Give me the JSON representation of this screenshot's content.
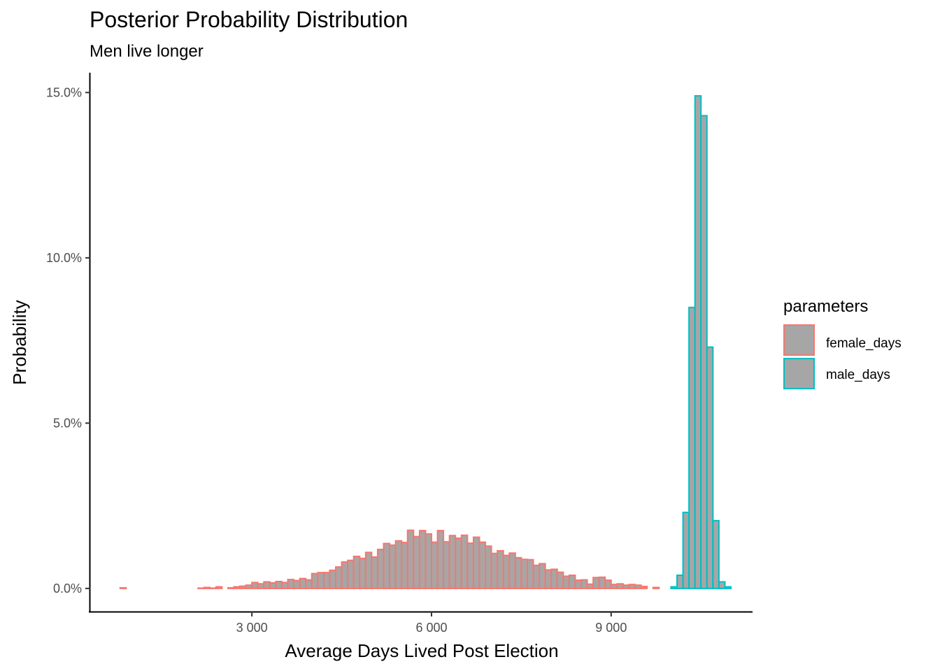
{
  "chart_data": {
    "type": "bar",
    "title": "Posterior Probability Distribution",
    "subtitle": "Men live longer",
    "xlabel": "Average Days Lived Post Election",
    "ylabel": "Probability",
    "xlim": [
      300,
      11350
    ],
    "ylim": [
      -0.7,
      15.6
    ],
    "x_ticks": [
      3000,
      6000,
      9000
    ],
    "x_tick_labels": [
      "3 000",
      "6 000",
      "9 000"
    ],
    "y_ticks": [
      0,
      5,
      10,
      15
    ],
    "y_tick_labels": [
      "0.0%",
      "5.0%",
      "10.0%",
      "15.0%"
    ],
    "grid": false,
    "legend": {
      "title": "parameters",
      "position": "right",
      "fill": "#a6a6a6"
    },
    "series": [
      {
        "name": "female_days",
        "color": "#f8766d",
        "bin_width": 100,
        "x": [
          850,
          950,
          1050,
          1150,
          1250,
          1350,
          1450,
          1550,
          1650,
          1750,
          1850,
          1950,
          2050,
          2150,
          2250,
          2350,
          2450,
          2550,
          2650,
          2750,
          2850,
          2950,
          3050,
          3150,
          3250,
          3350,
          3450,
          3550,
          3650,
          3750,
          3850,
          3950,
          4050,
          4150,
          4250,
          4350,
          4450,
          4550,
          4650,
          4750,
          4850,
          4950,
          5050,
          5150,
          5250,
          5350,
          5450,
          5550,
          5650,
          5750,
          5850,
          5950,
          6050,
          6150,
          6250,
          6350,
          6450,
          6550,
          6650,
          6750,
          6850,
          6950,
          7050,
          7150,
          7250,
          7350,
          7450,
          7550,
          7650,
          7750,
          7850,
          7950,
          8050,
          8150,
          8250,
          8350,
          8450,
          8550,
          8650,
          8750,
          8850,
          8950,
          9050,
          9150,
          9250,
          9350,
          9450,
          9550,
          9650,
          9750,
          9850,
          9950,
          10050,
          10150,
          10250,
          10350,
          10450,
          10550,
          10650,
          10750,
          10850,
          10950
        ],
        "values": [
          0.02,
          0.0,
          0.0,
          0.0,
          0.0,
          0.0,
          0.0,
          0.0,
          0.0,
          0.0,
          0.0,
          0.0,
          0.0,
          0.01,
          0.03,
          0.01,
          0.05,
          0.0,
          0.02,
          0.05,
          0.07,
          0.1,
          0.18,
          0.14,
          0.2,
          0.17,
          0.21,
          0.18,
          0.27,
          0.24,
          0.3,
          0.26,
          0.45,
          0.48,
          0.48,
          0.55,
          0.65,
          0.8,
          0.85,
          0.97,
          0.91,
          1.09,
          0.95,
          1.18,
          1.36,
          1.31,
          1.44,
          1.39,
          1.76,
          1.57,
          1.75,
          1.65,
          1.4,
          1.75,
          1.41,
          1.6,
          1.52,
          1.61,
          1.37,
          1.55,
          1.4,
          1.28,
          1.06,
          1.14,
          1.0,
          1.07,
          0.93,
          0.88,
          0.87,
          0.7,
          0.75,
          0.56,
          0.58,
          0.49,
          0.37,
          0.4,
          0.25,
          0.26,
          0.13,
          0.33,
          0.34,
          0.25,
          0.12,
          0.14,
          0.1,
          0.12,
          0.1,
          0.06,
          0.0,
          0.03,
          0.0,
          0.0,
          0.0,
          0.0,
          0.0,
          0.0,
          0.0,
          0.0,
          0.0,
          0.0,
          0.0,
          0.0
        ]
      },
      {
        "name": "male_days",
        "color": "#00bfc4",
        "bin_width": 100,
        "x": [
          850,
          950,
          1050,
          1150,
          1250,
          1350,
          1450,
          1550,
          1650,
          1750,
          1850,
          1950,
          2050,
          2150,
          2250,
          2350,
          2450,
          2550,
          2650,
          2750,
          2850,
          2950,
          3050,
          3150,
          3250,
          3350,
          3450,
          3550,
          3650,
          3750,
          3850,
          3950,
          4050,
          4150,
          4250,
          4350,
          4450,
          4550,
          4650,
          4750,
          4850,
          4950,
          5050,
          5150,
          5250,
          5350,
          5450,
          5550,
          5650,
          5750,
          5850,
          5950,
          6050,
          6150,
          6250,
          6350,
          6450,
          6550,
          6650,
          6750,
          6850,
          6950,
          7050,
          7150,
          7250,
          7350,
          7450,
          7550,
          7650,
          7750,
          7850,
          7950,
          8050,
          8150,
          8250,
          8350,
          8450,
          8550,
          8650,
          8750,
          8850,
          8950,
          9050,
          9150,
          9250,
          9350,
          9450,
          9550,
          9650,
          9750,
          9850,
          9950,
          10050,
          10150,
          10250,
          10350,
          10450,
          10550,
          10650,
          10750,
          10850,
          10950
        ],
        "values": [
          0.0,
          0.0,
          0.0,
          0.0,
          0.0,
          0.0,
          0.0,
          0.0,
          0.0,
          0.0,
          0.0,
          0.0,
          0.0,
          0.0,
          0.0,
          0.0,
          0.0,
          0.0,
          0.0,
          0.0,
          0.0,
          0.0,
          0.0,
          0.0,
          0.0,
          0.0,
          0.0,
          0.0,
          0.0,
          0.0,
          0.0,
          0.0,
          0.0,
          0.0,
          0.0,
          0.0,
          0.0,
          0.0,
          0.0,
          0.0,
          0.0,
          0.0,
          0.0,
          0.0,
          0.0,
          0.0,
          0.0,
          0.0,
          0.0,
          0.0,
          0.0,
          0.0,
          0.0,
          0.0,
          0.0,
          0.0,
          0.0,
          0.0,
          0.0,
          0.0,
          0.0,
          0.0,
          0.0,
          0.0,
          0.0,
          0.0,
          0.0,
          0.0,
          0.0,
          0.0,
          0.0,
          0.0,
          0.0,
          0.0,
          0.0,
          0.0,
          0.0,
          0.0,
          0.0,
          0.0,
          0.0,
          0.0,
          0.0,
          0.0,
          0.0,
          0.0,
          0.0,
          0.0,
          0.0,
          0.0,
          0.0,
          0.0,
          0.05,
          0.4,
          2.3,
          8.5,
          14.9,
          14.3,
          7.3,
          2.05,
          0.2,
          0.05
        ]
      }
    ]
  }
}
